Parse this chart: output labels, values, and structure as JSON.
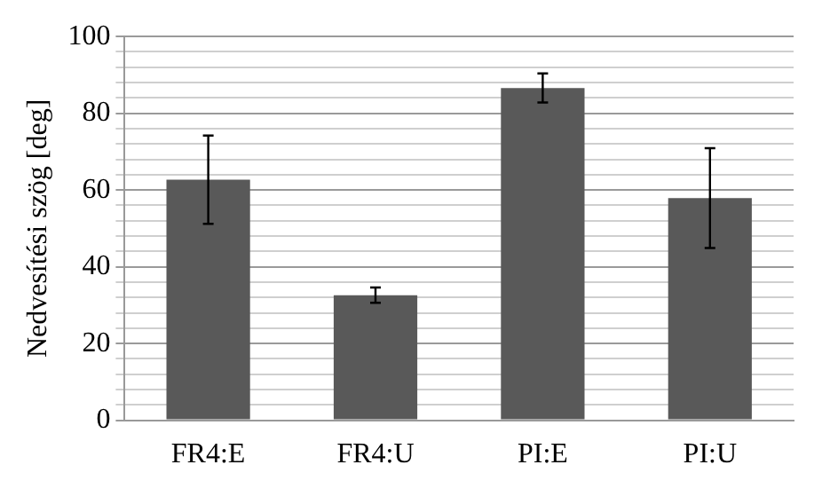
{
  "chart_data": {
    "type": "bar",
    "ylabel": "Nedvesítési szög [deg]",
    "categories": [
      "FR4:E",
      "FR4:U",
      "PI:E",
      "PI:U"
    ],
    "values": [
      62.7,
      32.6,
      86.6,
      57.9
    ],
    "errors": [
      11.5,
      2,
      3.8,
      13
    ],
    "color": "#595959",
    "ylim": [
      0,
      100
    ],
    "yticks": [
      0,
      {
        "value": 4,
        "label": null
      },
      {
        "value": 8,
        "label": null
      },
      {
        "value": 12,
        "label": null
      },
      {
        "value": 16,
        "label": null
      },
      20,
      {
        "value": 24,
        "label": null
      },
      {
        "value": 28,
        "label": null
      },
      {
        "value": 32,
        "label": null
      },
      {
        "value": 36,
        "label": null
      },
      40,
      {
        "value": 44,
        "label": null
      },
      {
        "value": 48,
        "label": null
      },
      {
        "value": 52,
        "label": null
      },
      {
        "value": 56,
        "label": null
      },
      60,
      {
        "value": 64,
        "label": null
      },
      {
        "value": 68,
        "label": null
      },
      {
        "value": 72,
        "label": null
      },
      {
        "value": 76,
        "label": null
      },
      80,
      {
        "value": 84,
        "label": null
      },
      {
        "value": 88,
        "label": null
      },
      {
        "value": 92,
        "label": null
      },
      {
        "value": 96,
        "label": null
      },
      100
    ],
    "grid": "y"
  }
}
